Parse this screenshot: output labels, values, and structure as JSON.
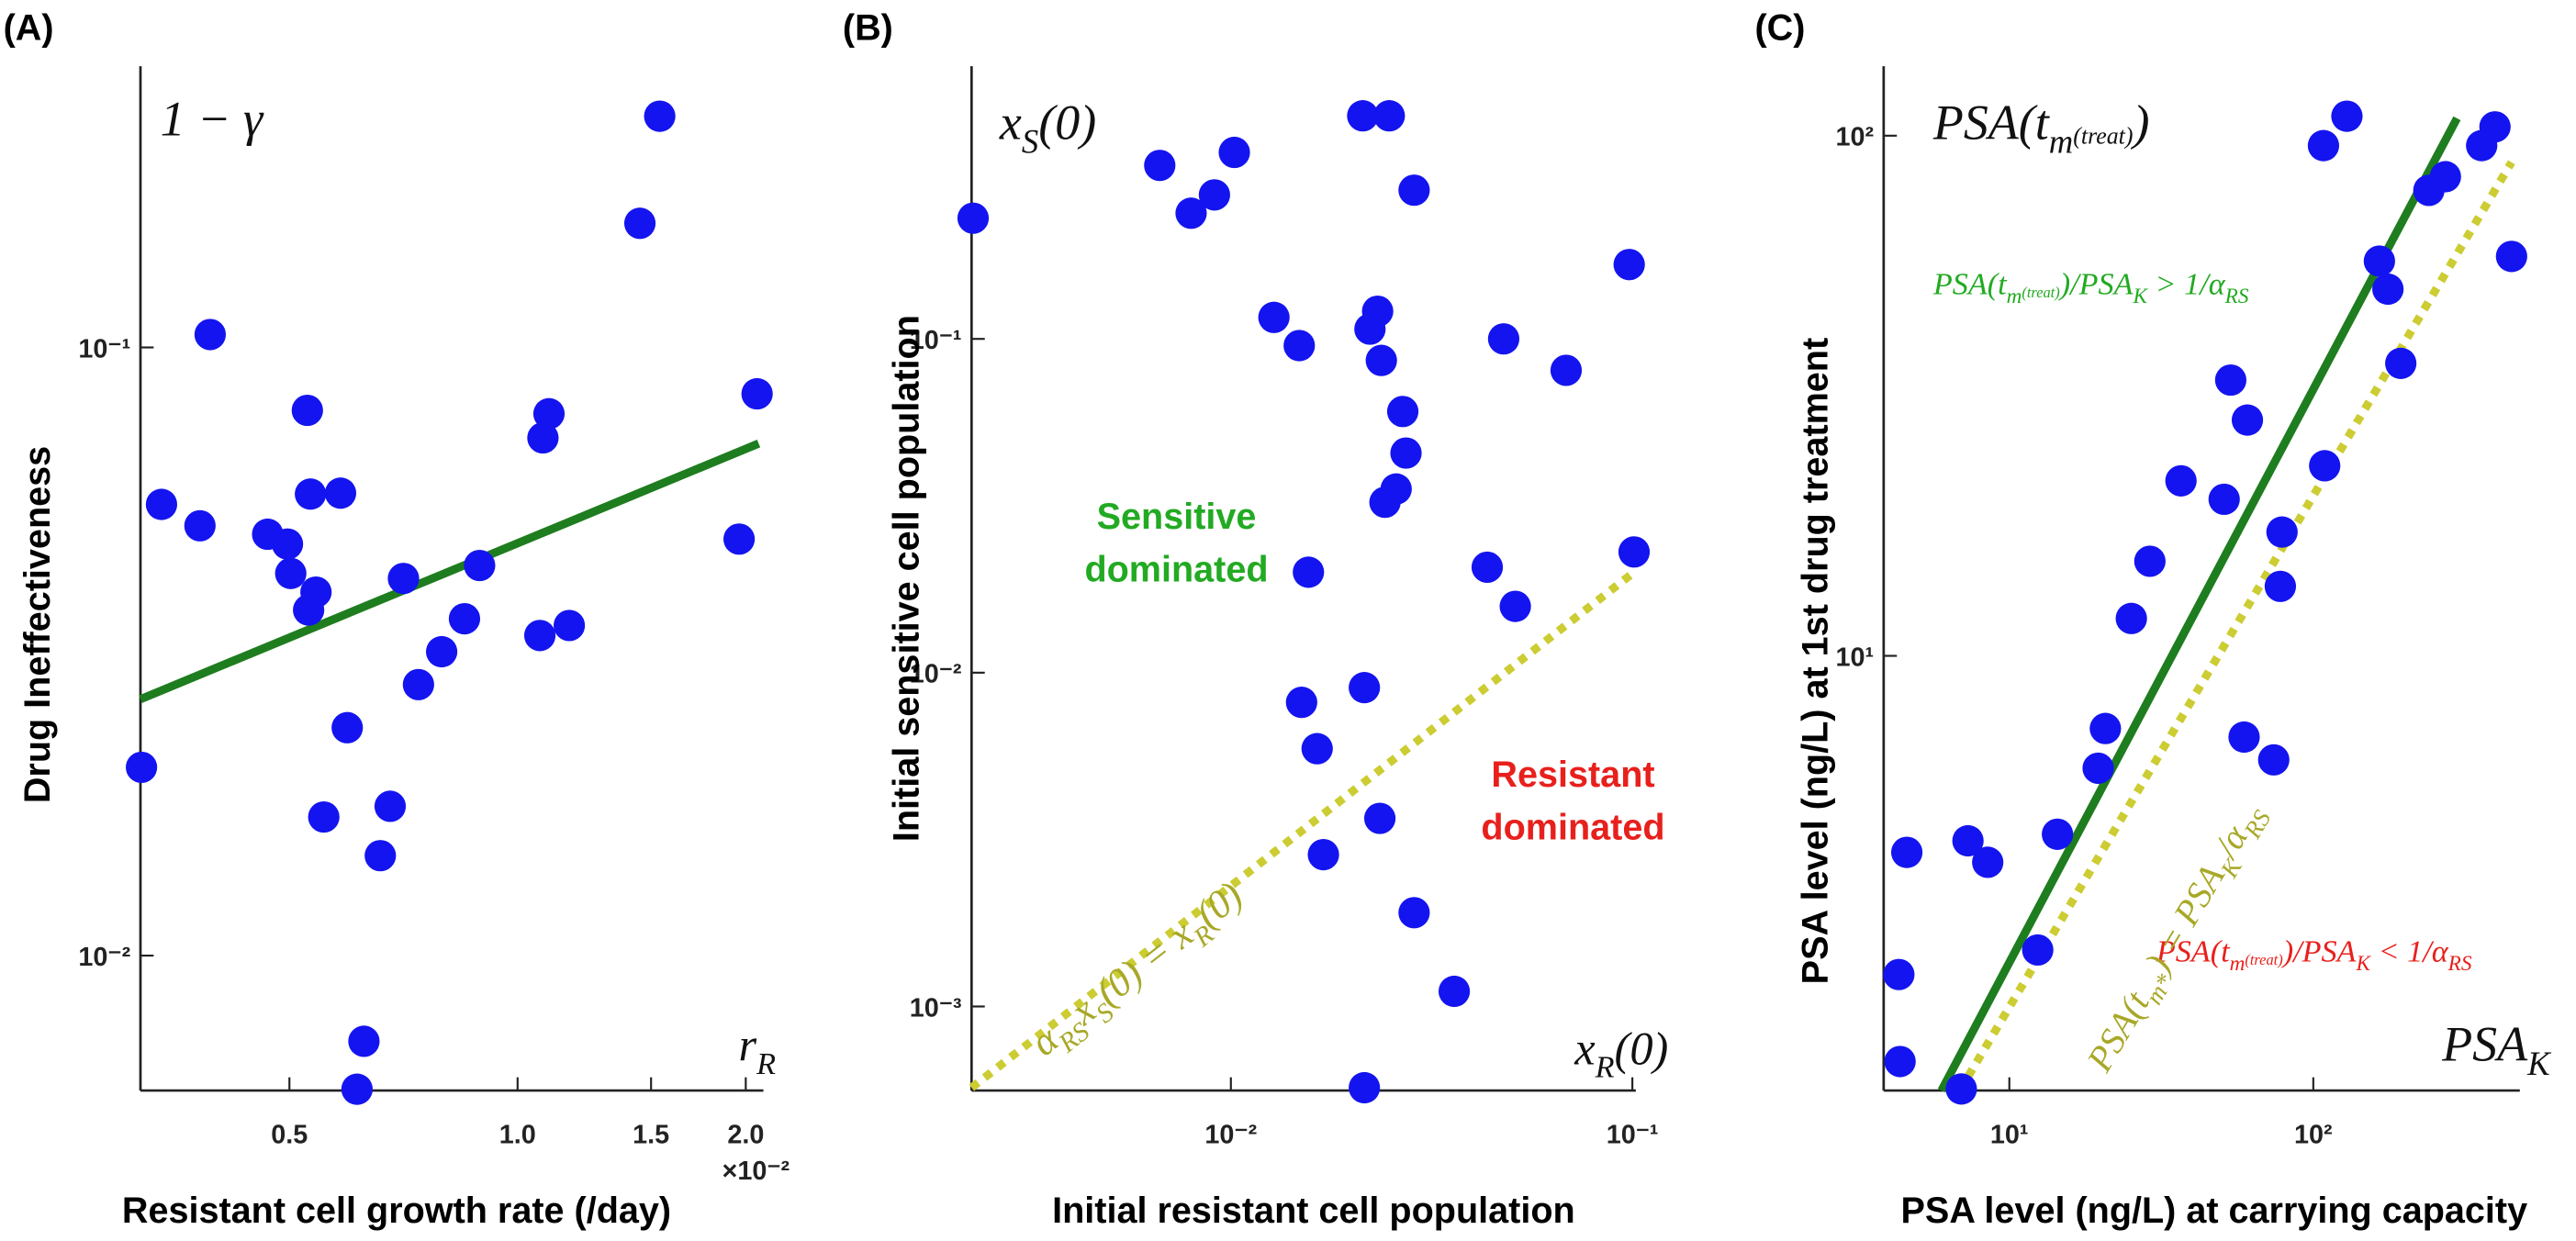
{
  "chart_data": [
    {
      "type": "scatter",
      "panel_label": "(A)",
      "x_label": "Resistant cell growth rate (/day)",
      "y_label": "Drug Ineffectiveness",
      "xscale": "log",
      "yscale": "log",
      "xlim": [
        0.318,
        2.11
      ],
      "ylim": [
        0.006,
        0.29
      ],
      "xticks": [
        0.5,
        {
          "value": 1,
          "label": "1.0"
        },
        1.5,
        {
          "value": 2,
          "label": "2.0"
        }
      ],
      "yticks": [
        {
          "value": 0.01,
          "label": "10⁻²"
        },
        {
          "value": 0.1,
          "label": "10⁻¹"
        }
      ],
      "x_multiplier": "×10⁻²",
      "color": "#1414f0",
      "x": [
        0.319,
        0.339,
        0.381,
        0.393,
        0.468,
        0.497,
        0.502,
        0.528,
        0.533,
        0.53,
        0.542,
        0.555,
        0.584,
        0.596,
        0.659,
        0.679,
        0.707,
        0.74,
        0.794,
        0.851,
        0.891,
        0.627,
        0.614,
        1.07,
        1.08,
        1.1,
        1.17,
        1.45,
        1.54,
        1.96,
        2.07
      ],
      "y": [
        0.0204,
        0.0552,
        0.0509,
        0.105,
        0.0493,
        0.0475,
        0.0425,
        0.0788,
        0.0574,
        0.037,
        0.0396,
        0.0169,
        0.0576,
        0.0237,
        0.0146,
        0.0176,
        0.0417,
        0.0279,
        0.0316,
        0.0358,
        0.0438,
        0.00723,
        0.00603,
        0.0336,
        0.071,
        0.0778,
        0.0349,
        0.16,
        0.24,
        0.0484,
        0.0839
      ],
      "lines": [
        {
          "x": [
            0.318,
            2.08
          ],
          "y": [
            0.0264,
            0.0695
          ],
          "color": "#1e7d1e",
          "style": "solid"
        }
      ],
      "annotations": [
        {
          "parts": [
            {
              "text": "1 − γ"
            }
          ],
          "color": "#111111"
        },
        {
          "parts": [
            {
              "text": "r"
            },
            {
              "text": "R",
              "pos": "sub"
            }
          ],
          "color": "#111111"
        }
      ],
      "region_labels": []
    },
    {
      "type": "scatter",
      "panel_label": "(B)",
      "x_label": "Initial resistant cell population",
      "y_label": "Initial sensitive cell population",
      "xscale": "log",
      "yscale": "log",
      "xlim": [
        0.00226,
        0.102
      ],
      "ylim": [
        0.00056,
        0.656
      ],
      "xticks": [
        {
          "value": 0.01,
          "label": "10⁻²"
        },
        {
          "value": 0.1,
          "label": "10⁻¹"
        }
      ],
      "yticks": [
        {
          "value": 0.001,
          "label": "10⁻³"
        },
        {
          "value": 0.01,
          "label": "10⁻²"
        },
        {
          "value": 0.1,
          "label": "10⁻¹"
        }
      ],
      "color": "#1414f0",
      "x": [
        0.00228,
        0.00665,
        0.00796,
        0.0091,
        0.0102,
        0.0128,
        0.0148,
        0.0213,
        0.0248,
        0.0286,
        0.0222,
        0.0232,
        0.0237,
        0.0268,
        0.0273,
        0.0258,
        0.0242,
        0.0156,
        0.015,
        0.0164,
        0.0215,
        0.017,
        0.0235,
        0.0286,
        0.036,
        0.0215,
        0.0435,
        0.0511,
        0.0478,
        0.0684,
        0.0982,
        0.101
      ],
      "y": [
        0.23,
        0.331,
        0.238,
        0.27,
        0.362,
        0.116,
        0.0955,
        0.466,
        0.466,
        0.279,
        0.107,
        0.121,
        0.0862,
        0.0606,
        0.0455,
        0.0355,
        0.0324,
        0.02,
        0.00815,
        0.00592,
        0.00902,
        0.00285,
        0.00366,
        0.00191,
        0.00111,
        0.000571,
        0.0207,
        0.0158,
        0.1,
        0.0805,
        0.167,
        0.023
      ],
      "lines": [
        {
          "x": [
            0.00226,
            0.101
          ],
          "y": [
            0.000571,
            0.02
          ],
          "color": "#cccc33",
          "style": "dotted"
        }
      ],
      "annotations": [
        {
          "parts": [
            {
              "text": "x"
            },
            {
              "text": "S",
              "pos": "sub"
            },
            {
              "text": "(0)"
            }
          ],
          "color": "#111111"
        },
        {
          "parts": [
            {
              "text": "x"
            },
            {
              "text": "R",
              "pos": "sub"
            },
            {
              "text": "(0)"
            }
          ],
          "color": "#111111"
        },
        {
          "parts": [
            {
              "text": "α"
            },
            {
              "text": "RS",
              "pos": "sub"
            },
            {
              "text": "x"
            },
            {
              "text": "S",
              "pos": "sub"
            },
            {
              "text": "(0) = x"
            },
            {
              "text": "R",
              "pos": "sub"
            },
            {
              "text": "(0)"
            }
          ],
          "color": "#a8a828"
        }
      ],
      "region_labels": [
        {
          "lines": [
            "Sensitive",
            "dominated"
          ],
          "color": "#22aa22"
        },
        {
          "lines": [
            "Resistant",
            "dominated"
          ],
          "color": "#e8201c"
        }
      ]
    },
    {
      "type": "scatter",
      "panel_label": "(C)",
      "x_label": "PSA level (ng/L) at carrying capacity",
      "y_label": "PSA level (ng/L) at 1st drug treatment",
      "xscale": "log",
      "yscale": "log",
      "xlim": [
        3.86,
        478
      ],
      "ylim": [
        1.46,
        136
      ],
      "xticks": [
        {
          "value": 10,
          "label": "10¹"
        },
        {
          "value": 100,
          "label": "10²"
        }
      ],
      "yticks": [
        {
          "value": 10,
          "label": "10¹"
        },
        {
          "value": 100,
          "label": "10²"
        }
      ],
      "color": "#1414f0",
      "x": [
        4.33,
        4.37,
        4.6,
        6.95,
        7.31,
        8.49,
        12.4,
        14.4,
        19.6,
        20.7,
        25.2,
        29,
        36.7,
        50.9,
        53.5,
        60.7,
        59.2,
        74.1,
        78.9,
        77.9,
        109,
        108,
        129,
        165,
        176,
        194,
        240,
        272,
        358,
        396,
        449
      ],
      "y": [
        2.44,
        1.66,
        4.19,
        1.47,
        4.41,
        4.01,
        2.72,
        4.54,
        6.08,
        7.25,
        11.8,
        15.2,
        21.7,
        20.0,
        33.9,
        28.4,
        6.98,
        6.31,
        17.3,
        13.6,
        23.2,
        95.7,
        109,
        57.4,
        50.7,
        36.5,
        78.5,
        83.4,
        95.7,
        104,
        58.6
      ],
      "lines": [
        {
          "x": [
            5.98,
            297
          ],
          "y": [
            1.46,
            108
          ],
          "color": "#1e7d1e",
          "style": "solid"
        },
        {
          "x": [
            6.87,
            449
          ],
          "y": [
            1.46,
            88.9
          ],
          "color": "#cccc33",
          "style": "dotted"
        }
      ],
      "annotations": [
        {
          "parts": [
            {
              "text": "PSA(t"
            },
            {
              "text": "m",
              "pos": "sub"
            },
            {
              "text": "(treat)",
              "pos": "subsup"
            },
            {
              "text": ")"
            }
          ],
          "color": "#111111"
        },
        {
          "parts": [
            {
              "text": "PSA"
            },
            {
              "text": "K",
              "pos": "sub"
            }
          ],
          "color": "#111111"
        },
        {
          "parts": [
            {
              "text": "PSA(t"
            },
            {
              "text": "m",
              "pos": "sub"
            },
            {
              "text": "(treat)",
              "pos": "subsup"
            },
            {
              "text": ")/PSA"
            },
            {
              "text": "K",
              "pos": "sub"
            },
            {
              "text": " > 1/α"
            },
            {
              "text": "RS",
              "pos": "sub"
            }
          ],
          "color": "#22aa22"
        },
        {
          "parts": [
            {
              "text": "PSA(t"
            },
            {
              "text": "m",
              "pos": "sub"
            },
            {
              "text": "(treat)",
              "pos": "subsup"
            },
            {
              "text": ")/PSA"
            },
            {
              "text": "K",
              "pos": "sub"
            },
            {
              "text": " < 1/α"
            },
            {
              "text": "RS",
              "pos": "sub"
            }
          ],
          "color": "#e8201c"
        },
        {
          "parts": [
            {
              "text": "PSA(t"
            },
            {
              "text": "m*",
              "pos": "sub"
            },
            {
              "text": ") = PSA"
            },
            {
              "text": "K",
              "pos": "sub"
            },
            {
              "text": "/α"
            },
            {
              "text": "RS",
              "pos": "sub"
            }
          ],
          "color": "#a8a828"
        }
      ],
      "region_labels": []
    }
  ]
}
